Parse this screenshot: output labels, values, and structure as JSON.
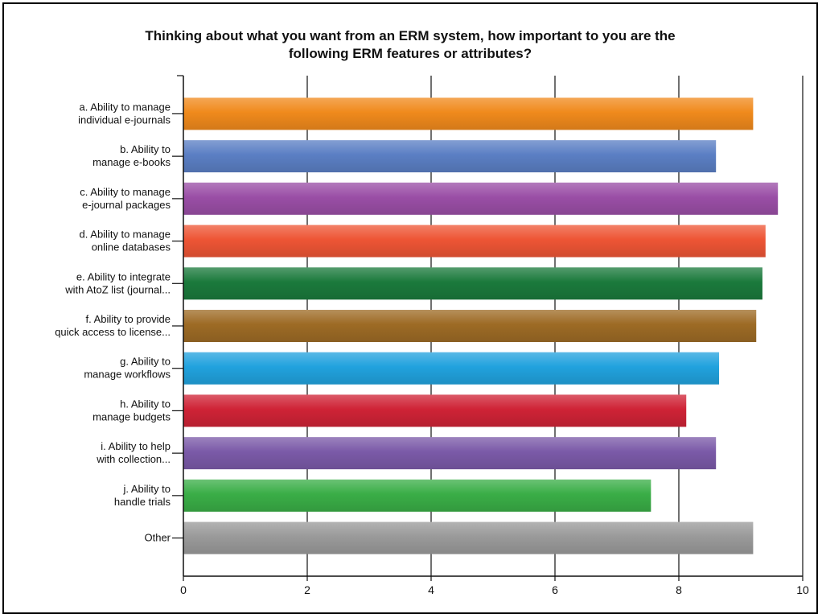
{
  "chart_data": {
    "type": "bar",
    "orientation": "horizontal",
    "title": [
      "Thinking about what you want from an ERM system, how important to you are the",
      "following ERM features or attributes?"
    ],
    "categories": [
      [
        "a. Ability to manage",
        "individual e-journals"
      ],
      [
        "b. Ability to",
        "manage e-books"
      ],
      [
        "c. Ability to manage",
        "e-journal packages"
      ],
      [
        "d. Ability to manage",
        "online databases"
      ],
      [
        "e. Ability to integrate",
        "with AtoZ list (journal..."
      ],
      [
        "f. Ability to provide",
        "quick access to license..."
      ],
      [
        "g. Ability to",
        "manage workflows"
      ],
      [
        "h. Ability to",
        "manage budgets"
      ],
      [
        "i. Ability to help",
        "with collection..."
      ],
      [
        "j. Ability to",
        "handle trials"
      ],
      [
        "Other"
      ]
    ],
    "values": [
      9.2,
      8.6,
      9.6,
      9.4,
      9.35,
      9.25,
      8.65,
      8.12,
      8.6,
      7.55,
      9.2
    ],
    "colors": [
      "#f08a1c",
      "#5b7fc4",
      "#9a4ea6",
      "#ee5535",
      "#1b7a3c",
      "#9d6b25",
      "#21a2de",
      "#cf2336",
      "#7b5aa8",
      "#3aae47",
      "#9a9a9a"
    ],
    "xlim": [
      0,
      10
    ],
    "xticks": [
      "0",
      "2",
      "4",
      "6",
      "8",
      "10"
    ],
    "grid": true,
    "legend": "none"
  }
}
